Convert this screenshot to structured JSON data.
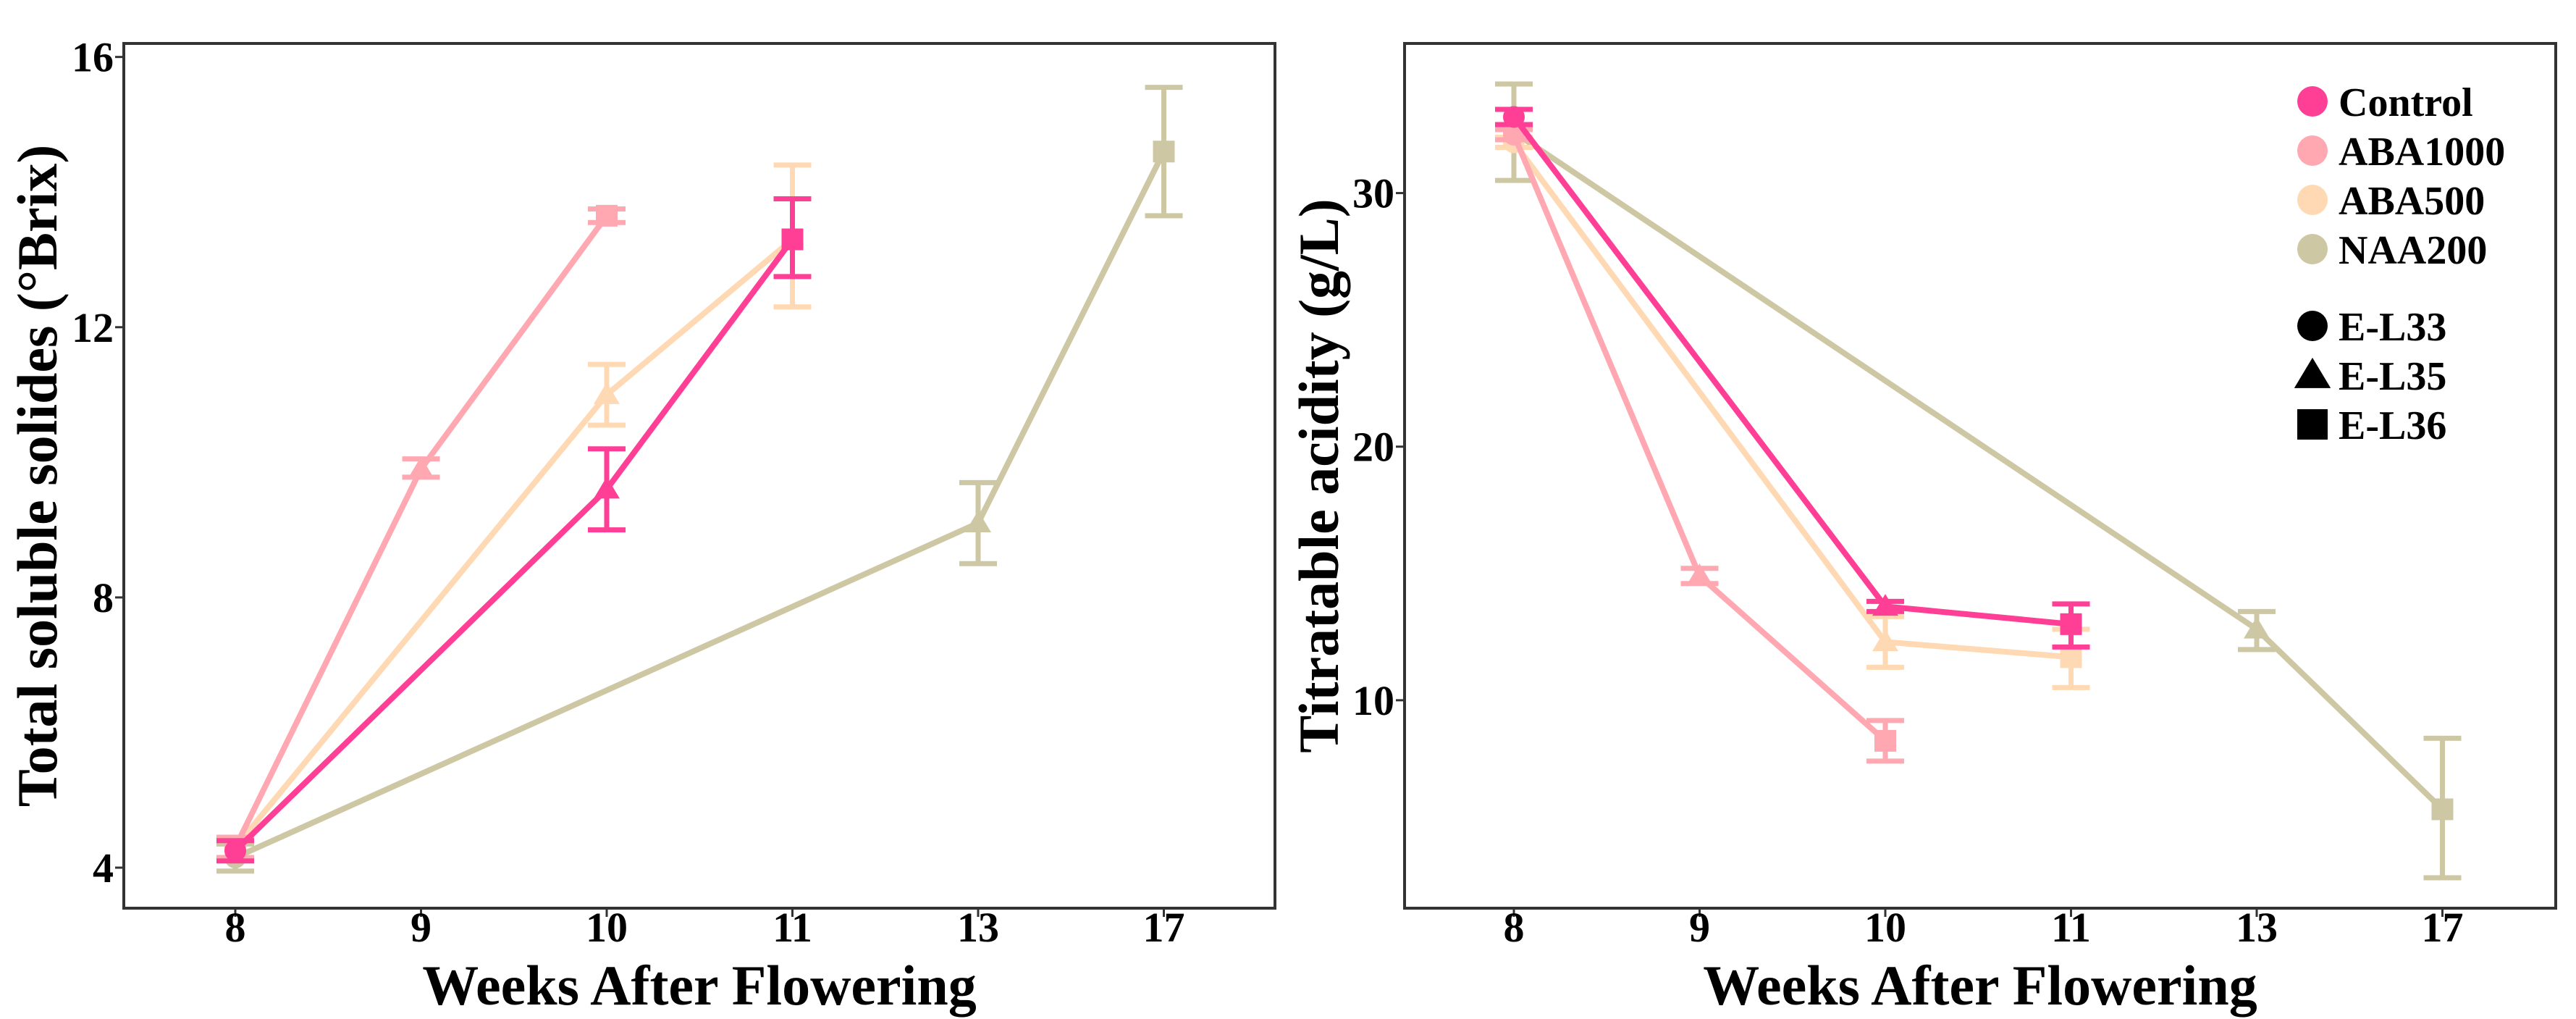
{
  "chart_data": [
    {
      "type": "line",
      "title": "",
      "xlabel": "Weeks After Flowering",
      "ylabel": "Total soluble solides (°Brix)",
      "categories": [
        "8",
        "9",
        "10",
        "11",
        "13",
        "17"
      ],
      "yticks": [
        4,
        8,
        12,
        16
      ],
      "ylim": [
        3.4,
        16.2
      ],
      "grid": false,
      "series": [
        {
          "name": "Control",
          "color": "#FF3E96",
          "points": [
            {
              "x": "8",
              "y": 4.25,
              "lo": 4.1,
              "hi": 4.4,
              "stage": "E-L33"
            },
            {
              "x": "10",
              "y": 9.6,
              "lo": 9.0,
              "hi": 10.2,
              "stage": "E-L35"
            },
            {
              "x": "11",
              "y": 13.3,
              "lo": 12.75,
              "hi": 13.9,
              "stage": "E-L36"
            }
          ]
        },
        {
          "name": "ABA1000",
          "color": "#FFA8B2",
          "points": [
            {
              "x": "8",
              "y": 4.3,
              "lo": 4.15,
              "hi": 4.45,
              "stage": "E-L33"
            },
            {
              "x": "9",
              "y": 9.9,
              "lo": 9.78,
              "hi": 10.05,
              "stage": "E-L35"
            },
            {
              "x": "10",
              "y": 13.65,
              "lo": 13.55,
              "hi": 13.75,
              "stage": "E-L36"
            }
          ]
        },
        {
          "name": "ABA500",
          "color": "#FFD9B3",
          "points": [
            {
              "x": "8",
              "y": 4.3,
              "lo": 4.15,
              "hi": 4.45,
              "stage": "E-L33"
            },
            {
              "x": "10",
              "y": 11.0,
              "lo": 10.55,
              "hi": 11.45,
              "stage": "E-L35"
            },
            {
              "x": "11",
              "y": 13.3,
              "lo": 12.3,
              "hi": 14.4,
              "stage": "E-L36"
            }
          ]
        },
        {
          "name": "NAA200",
          "color": "#CDC7A4",
          "points": [
            {
              "x": "8",
              "y": 4.15,
              "lo": 3.95,
              "hi": 4.35,
              "stage": "E-L33"
            },
            {
              "x": "13",
              "y": 9.1,
              "lo": 8.5,
              "hi": 9.7,
              "stage": "E-L35"
            },
            {
              "x": "17",
              "y": 14.6,
              "lo": 13.65,
              "hi": 15.55,
              "stage": "E-L36"
            }
          ]
        }
      ]
    },
    {
      "type": "line",
      "title": "",
      "xlabel": "Weeks After Flowering",
      "ylabel": "Titratable acidity (g/L)",
      "categories": [
        "8",
        "9",
        "10",
        "11",
        "13",
        "17"
      ],
      "yticks": [
        10,
        20,
        30
      ],
      "ylim": [
        1.8,
        35.9
      ],
      "grid": false,
      "legend_position": "top-right",
      "series": [
        {
          "name": "Control",
          "color": "#FF3E96",
          "points": [
            {
              "x": "8",
              "y": 33.0,
              "lo": 32.7,
              "hi": 33.3,
              "stage": "E-L33"
            },
            {
              "x": "10",
              "y": 13.7,
              "lo": 13.5,
              "hi": 13.9,
              "stage": "E-L35"
            },
            {
              "x": "11",
              "y": 13.0,
              "lo": 12.1,
              "hi": 13.8,
              "stage": "E-L36"
            }
          ]
        },
        {
          "name": "ABA1000",
          "color": "#FFA8B2",
          "points": [
            {
              "x": "8",
              "y": 32.3,
              "lo": 32.1,
              "hi": 32.5,
              "stage": "E-L33"
            },
            {
              "x": "9",
              "y": 14.9,
              "lo": 14.6,
              "hi": 15.2,
              "stage": "E-L35"
            },
            {
              "x": "10",
              "y": 8.4,
              "lo": 7.6,
              "hi": 9.2,
              "stage": "E-L36"
            }
          ]
        },
        {
          "name": "ABA500",
          "color": "#FFD9B3",
          "points": [
            {
              "x": "8",
              "y": 32.0,
              "lo": 31.8,
              "hi": 32.2,
              "stage": "E-L33"
            },
            {
              "x": "10",
              "y": 12.3,
              "lo": 11.3,
              "hi": 13.3,
              "stage": "E-L35"
            },
            {
              "x": "11",
              "y": 11.7,
              "lo": 10.5,
              "hi": 12.8,
              "stage": "E-L36"
            }
          ]
        },
        {
          "name": "NAA200",
          "color": "#CDC7A4",
          "points": [
            {
              "x": "8",
              "y": 32.4,
              "lo": 30.5,
              "hi": 34.3,
              "stage": "E-L33"
            },
            {
              "x": "13",
              "y": 12.8,
              "lo": 12.0,
              "hi": 13.5,
              "stage": "E-L35"
            },
            {
              "x": "17",
              "y": 5.7,
              "lo": 3.0,
              "hi": 8.5,
              "stage": "E-L36"
            }
          ]
        }
      ]
    }
  ],
  "legend": {
    "treatments": [
      {
        "label": "Control",
        "color": "#FF3E96"
      },
      {
        "label": "ABA1000",
        "color": "#FFA8B2"
      },
      {
        "label": "ABA500",
        "color": "#FFD9B3"
      },
      {
        "label": "NAA200",
        "color": "#CDC7A4"
      }
    ],
    "stages": [
      {
        "label": "E-L33",
        "shape": "circle"
      },
      {
        "label": "E-L35",
        "shape": "triangle"
      },
      {
        "label": "E-L36",
        "shape": "square"
      }
    ]
  }
}
